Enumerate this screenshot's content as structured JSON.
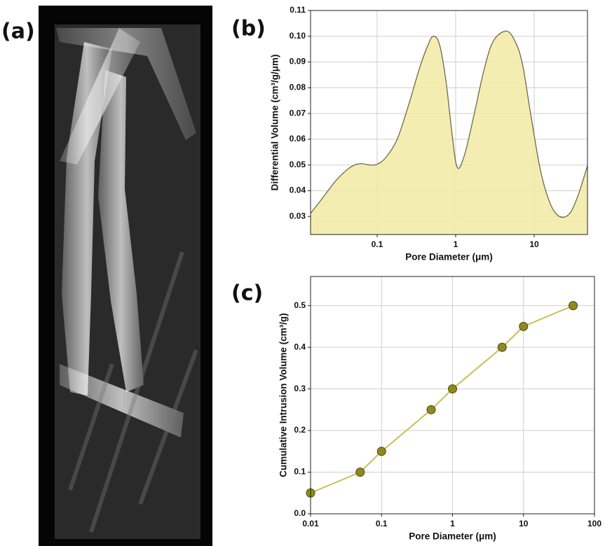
{
  "image_panel": {
    "label": "(a)"
  },
  "chart_data": [
    {
      "type": "area",
      "panel_label": "(b)",
      "x_label": "Pore Diameter (μm)",
      "y_label": "Differential Volume (cm³/g/μm)",
      "x": [
        0.014,
        0.02,
        0.03,
        0.045,
        0.06,
        0.08,
        0.1,
        0.13,
        0.18,
        0.25,
        0.35,
        0.45,
        0.52,
        0.62,
        0.75,
        0.9,
        1.05,
        1.3,
        1.7,
        2.3,
        3.0,
        4.3,
        5.5,
        7.0,
        9.0,
        12,
        16,
        21,
        28,
        36,
        48
      ],
      "values": [
        0.031,
        0.037,
        0.044,
        0.049,
        0.0505,
        0.05,
        0.0503,
        0.053,
        0.06,
        0.073,
        0.088,
        0.097,
        0.1,
        0.097,
        0.083,
        0.062,
        0.049,
        0.054,
        0.069,
        0.087,
        0.098,
        0.102,
        0.099,
        0.09,
        0.07,
        0.048,
        0.035,
        0.03,
        0.031,
        0.038,
        0.05
      ],
      "color": "#f2eaa3",
      "line_color": "#6e6a4a",
      "log_x": true,
      "xlim": [
        0.0142,
        47.7
      ],
      "xticks": [
        0.1,
        1,
        10
      ],
      "ylim": [
        0.023,
        0.11
      ],
      "yticks": [
        0.03,
        0.04,
        0.05,
        0.06,
        0.07,
        0.08,
        0.09,
        {
          "value": 0.1,
          "label": "0.10"
        },
        0.11
      ],
      "grid": true
    },
    {
      "type": "line",
      "panel_label": "(c)",
      "x_label": "Pore Diameter (μm)",
      "y_label": "Cumulative Intrusion Volume (cm³/g)",
      "x": [
        0.01,
        0.05,
        0.1,
        0.5,
        1,
        5,
        10,
        50
      ],
      "values": [
        0.05,
        0.1,
        0.15,
        0.25,
        0.3,
        0.4,
        0.45,
        0.5
      ],
      "color": "#c9c058",
      "marker_color": "#8f8a1e",
      "log_x": true,
      "xlim": [
        0.01,
        100
      ],
      "xticks": [
        0.01,
        0.1,
        1,
        10,
        100
      ],
      "ylim": [
        0,
        0.57
      ],
      "yticks": [
        {
          "value": 0,
          "label": "0.0"
        },
        0.1,
        0.2,
        0.3,
        0.4,
        0.5
      ],
      "grid": true
    }
  ]
}
